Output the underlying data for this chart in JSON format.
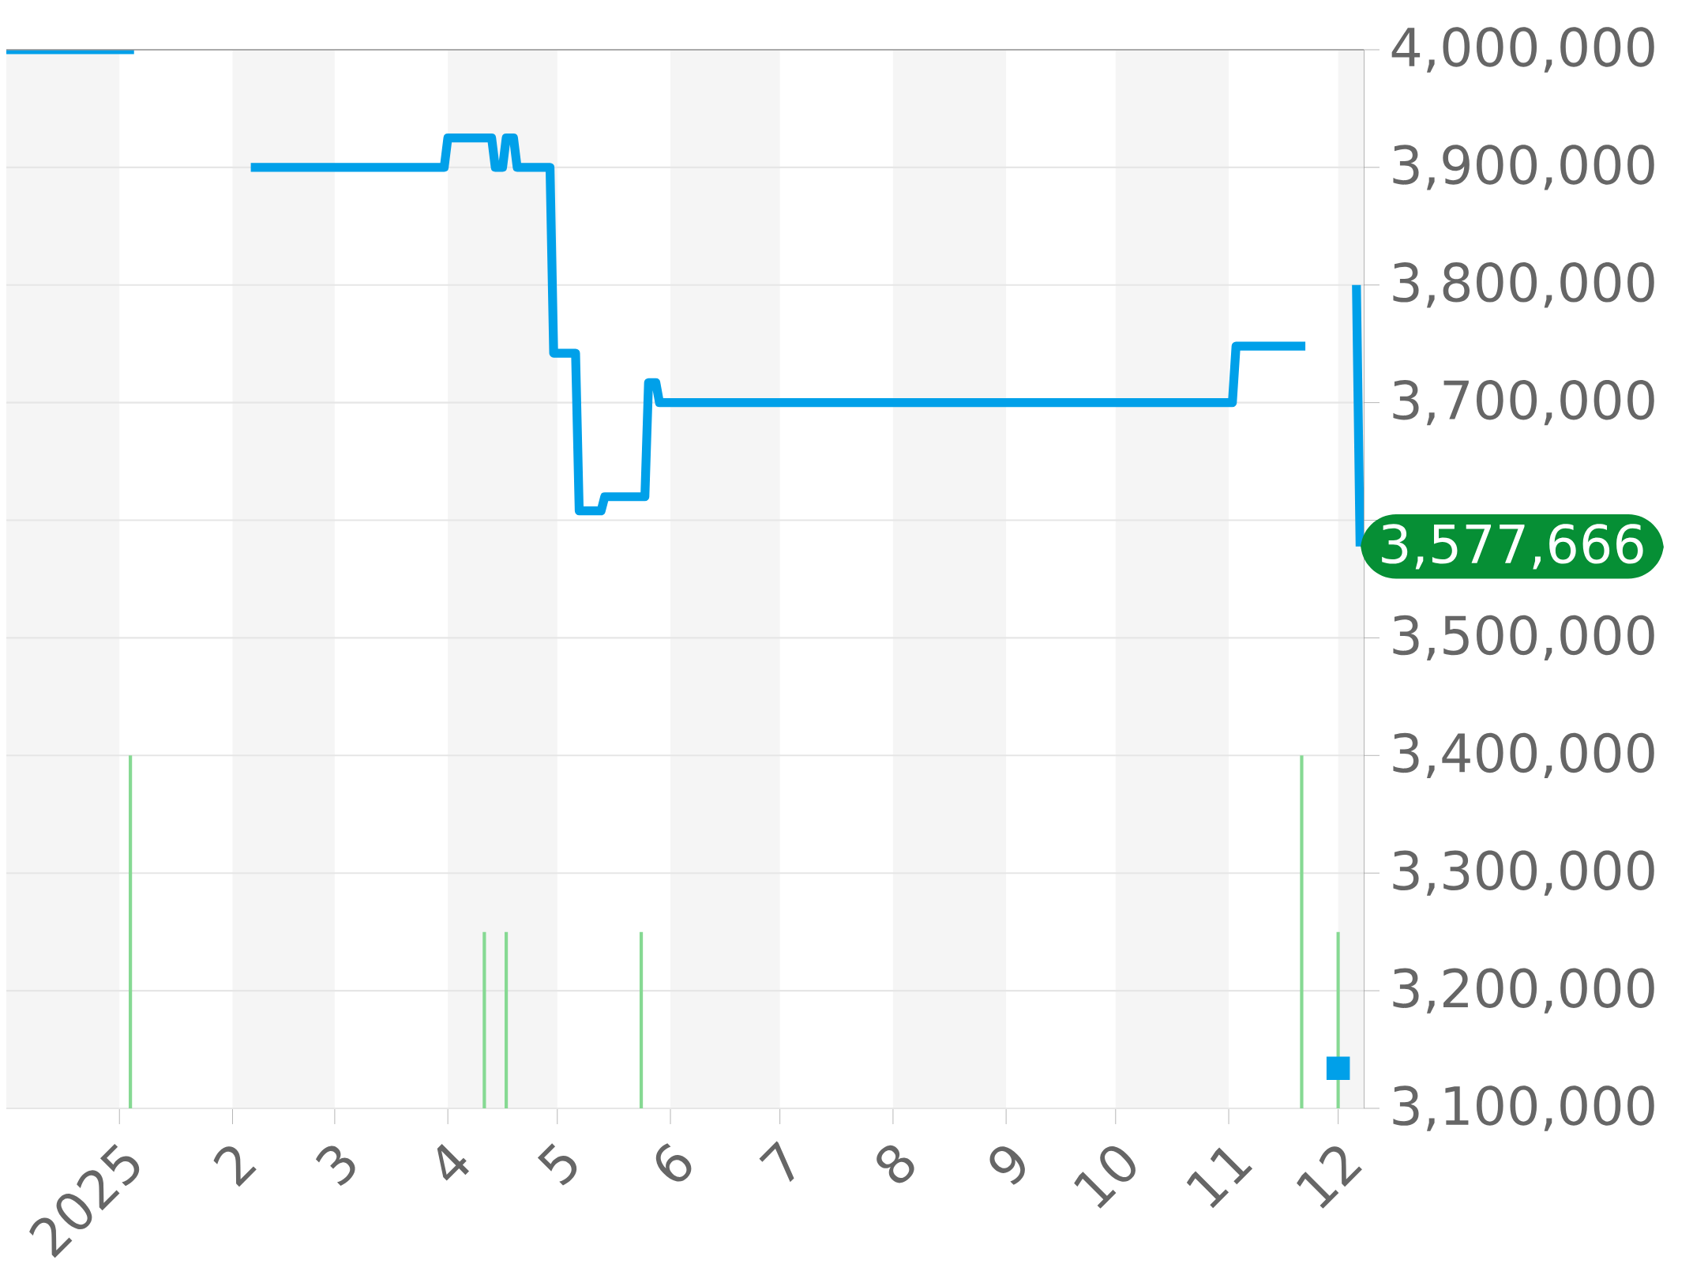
{
  "chart_data": {
    "type": "line",
    "xlim": [
      "2024-12-01",
      "2025-12-08"
    ],
    "ylim": [
      3100000,
      4000000
    ],
    "xticks": [
      {
        "value": "2025-01-01",
        "label": "2025"
      },
      {
        "value": "2025-02-01",
        "label": "2"
      },
      {
        "value": "2025-03-01",
        "label": "3"
      },
      {
        "value": "2025-04-01",
        "label": "4"
      },
      {
        "value": "2025-05-01",
        "label": "5"
      },
      {
        "value": "2025-06-01",
        "label": "6"
      },
      {
        "value": "2025-07-01",
        "label": "7"
      },
      {
        "value": "2025-08-01",
        "label": "8"
      },
      {
        "value": "2025-09-01",
        "label": "9"
      },
      {
        "value": "2025-10-01",
        "label": "10"
      },
      {
        "value": "2025-11-01",
        "label": "11"
      },
      {
        "value": "2025-12-01",
        "label": "12"
      }
    ],
    "yticks": [
      {
        "value": 3100000,
        "label": "3,100,000"
      },
      {
        "value": 3200000,
        "label": "3,200,000"
      },
      {
        "value": 3300000,
        "label": "3,300,000"
      },
      {
        "value": 3400000,
        "label": "3,400,000"
      },
      {
        "value": 3500000,
        "label": "3,500,000"
      },
      {
        "value": 3600000,
        "label": null
      },
      {
        "value": 3700000,
        "label": "3,700,000"
      },
      {
        "value": 3800000,
        "label": "3,800,000"
      },
      {
        "value": 3900000,
        "label": "3,900,000"
      },
      {
        "value": 4000000,
        "label": "4,000,000"
      }
    ],
    "grid": "y",
    "bands": [
      {
        "axis": "x",
        "from": "2024-12-01",
        "to": "2025-01-01",
        "color": "#f5f5f5"
      },
      {
        "axis": "x",
        "from": "2025-02-01",
        "to": "2025-03-01",
        "color": "#f5f5f5"
      },
      {
        "axis": "x",
        "from": "2025-04-01",
        "to": "2025-05-01",
        "color": "#f5f5f5"
      },
      {
        "axis": "x",
        "from": "2025-06-01",
        "to": "2025-07-01",
        "color": "#f5f5f5"
      },
      {
        "axis": "x",
        "from": "2025-08-01",
        "to": "2025-09-01",
        "color": "#f5f5f5"
      },
      {
        "axis": "x",
        "from": "2025-10-01",
        "to": "2025-11-01",
        "color": "#f5f5f5"
      },
      {
        "axis": "x",
        "from": "2025-12-01",
        "to": "2025-12-08",
        "color": "#f5f5f5"
      }
    ],
    "series": [
      {
        "type": "bar",
        "color": "#86d993",
        "x": [
          "2025-01-04",
          "2025-04-11",
          "2025-04-17",
          "2025-05-24",
          "2025-11-21",
          "2025-12-01"
        ],
        "values": [
          3400000,
          3250000,
          3250000,
          3250000,
          3400000,
          3250000
        ]
      },
      {
        "color": "#00a0e9",
        "marker": "none",
        "x": [
          "2024-12-01",
          "2025-01-05",
          "2025-01-20",
          "2025-02-06",
          "2025-03-31",
          "2025-04-01",
          "2025-04-13",
          "2025-04-14",
          "2025-04-16",
          "2025-04-17",
          "2025-04-19",
          "2025-04-20",
          "2025-04-29",
          "2025-04-30",
          "2025-05-06",
          "2025-05-07",
          "2025-05-13",
          "2025-05-14",
          "2025-05-25",
          "2025-05-26",
          "2025-05-28",
          "2025-05-29",
          "2025-11-02",
          "2025-11-03",
          "2025-11-22",
          "2025-12-01",
          "2025-12-06",
          "2025-12-07"
        ],
        "values": [
          4000000,
          4000000,
          null,
          3900000,
          3900000,
          3925000,
          3925000,
          3900000,
          3900000,
          3925000,
          3925000,
          3900000,
          3900000,
          3742000,
          3742000,
          3608000,
          3608000,
          3620000,
          3620000,
          3717000,
          3717000,
          3700000,
          3700000,
          3748000,
          3748000,
          null,
          3800000,
          3577666
        ]
      },
      {
        "type": "scatter",
        "color": "#00a0e9",
        "marker": "square",
        "x": [
          "2025-12-01"
        ],
        "values": [
          3134000
        ]
      }
    ],
    "annotations": [
      {
        "text": "3,577,666",
        "x": "2025-12-07",
        "y": 3577666
      }
    ]
  }
}
